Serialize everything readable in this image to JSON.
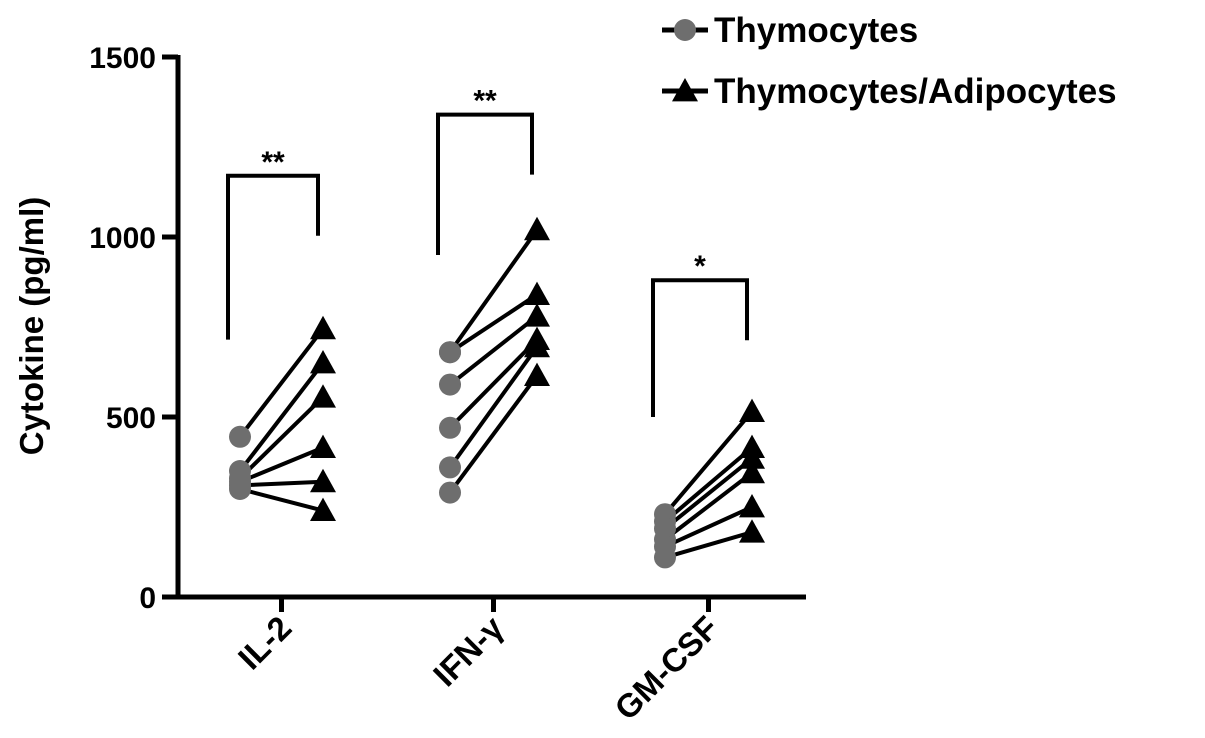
{
  "chart_data": {
    "type": "scatter",
    "subtype": "paired before-after",
    "title": "",
    "xlabel": "",
    "ylabel": "Cytokine (pg/ml)",
    "ylim": [
      0,
      1500
    ],
    "yticks": [
      0,
      500,
      1000,
      1500
    ],
    "grid": false,
    "legend_position": "top-right",
    "categories": [
      "IL-2",
      "IFN-γ",
      "GM-CSF"
    ],
    "series": [
      {
        "name": "Thymocytes",
        "marker": "circle",
        "color": "#6e6e6e",
        "values": [
          [
            445,
            350,
            330,
            320,
            310,
            300
          ],
          [
            680,
            680,
            590,
            470,
            360,
            290
          ],
          [
            230,
            210,
            190,
            160,
            140,
            110
          ]
        ]
      },
      {
        "name": "Thymocytes/Adipocytes",
        "marker": "triangle",
        "color": "#000000",
        "values": [
          [
            745,
            650,
            555,
            415,
            320,
            240
          ],
          [
            1020,
            840,
            780,
            715,
            695,
            615
          ],
          [
            515,
            415,
            385,
            345,
            250,
            180
          ]
        ]
      }
    ],
    "significance": [
      {
        "category": "IL-2",
        "label": "**",
        "bracket_y": 1170
      },
      {
        "category": "IFN-γ",
        "label": "**",
        "bracket_y": 1340
      },
      {
        "category": "GM-CSF",
        "label": "*",
        "bracket_y": 880
      }
    ]
  }
}
